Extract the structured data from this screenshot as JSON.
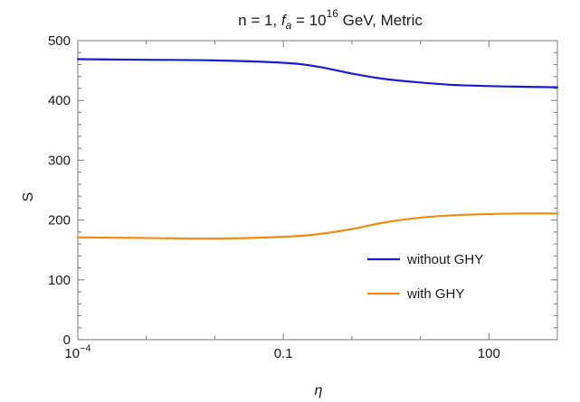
{
  "chart_data": {
    "type": "line",
    "title": {
      "prefix": "n = 1, ",
      "var": "f",
      "sub": "a",
      "mid": " = 10",
      "sup": "16",
      "suffix": " GeV, Metric"
    },
    "xlabel": "η",
    "ylabel": "S",
    "x_scale": "log10",
    "xlim": [
      0.0001,
      1000
    ],
    "ylim": [
      0,
      500
    ],
    "x_ticks": [
      {
        "value": 0.0001,
        "base": "10",
        "exp": "−4"
      },
      {
        "value": 0.1,
        "label": "0.1"
      },
      {
        "value": 100,
        "label": "100"
      }
    ],
    "y_ticks": [
      0,
      100,
      200,
      300,
      400,
      500
    ],
    "y_tick_labels": [
      "0",
      "100",
      "200",
      "300",
      "400",
      "500"
    ],
    "grid": false,
    "legend_position": "lower-right",
    "series": [
      {
        "name": "without GHY",
        "color": "#1a1ad6",
        "x": [
          0.0001,
          0.001,
          0.01,
          0.1,
          0.3,
          1,
          3,
          10,
          30,
          100,
          300,
          1000
        ],
        "y": [
          469,
          468,
          467,
          463,
          457,
          445,
          436,
          430,
          426,
          424,
          423,
          422
        ]
      },
      {
        "name": "with GHY",
        "color": "#f28a14",
        "x": [
          0.0001,
          0.001,
          0.01,
          0.1,
          0.3,
          1,
          3,
          10,
          30,
          100,
          300,
          1000
        ],
        "y": [
          171,
          170,
          169,
          172,
          176,
          185,
          196,
          204,
          208,
          210,
          211,
          211
        ]
      }
    ]
  }
}
